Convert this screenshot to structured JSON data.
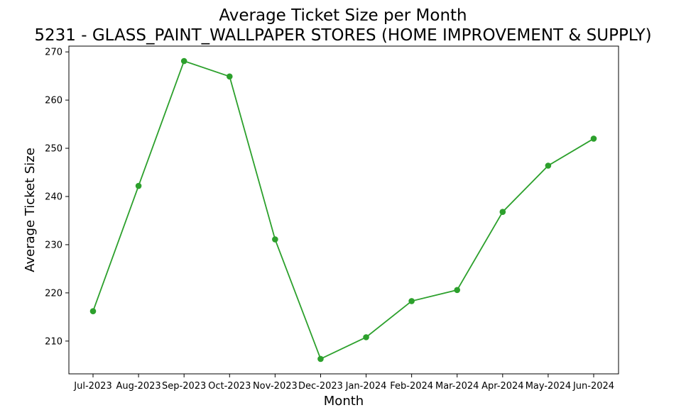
{
  "chart_data": {
    "type": "line",
    "title": "Average Ticket Size per Month",
    "subtitle": "5231 - GLASS_PAINT_WALLPAPER STORES (HOME IMPROVEMENT & SUPPLY)",
    "xlabel": "Month",
    "ylabel": "Average Ticket Size",
    "categories": [
      "Jul-2023",
      "Aug-2023",
      "Sep-2023",
      "Oct-2023",
      "Nov-2023",
      "Dec-2023",
      "Jan-2024",
      "Feb-2024",
      "Mar-2024",
      "Apr-2024",
      "May-2024",
      "Jun-2024"
    ],
    "series": [
      {
        "values": [
          216.2,
          242.2,
          268.1,
          264.9,
          231.1,
          206.3,
          210.8,
          218.3,
          220.6,
          236.8,
          246.4,
          252.0
        ],
        "color": "#2ca02c",
        "marker": "circle"
      }
    ],
    "yticks": [
      210,
      220,
      230,
      240,
      250,
      260,
      270
    ],
    "ylim": [
      203.2,
      271.2
    ],
    "grid": false,
    "legend": "none"
  }
}
